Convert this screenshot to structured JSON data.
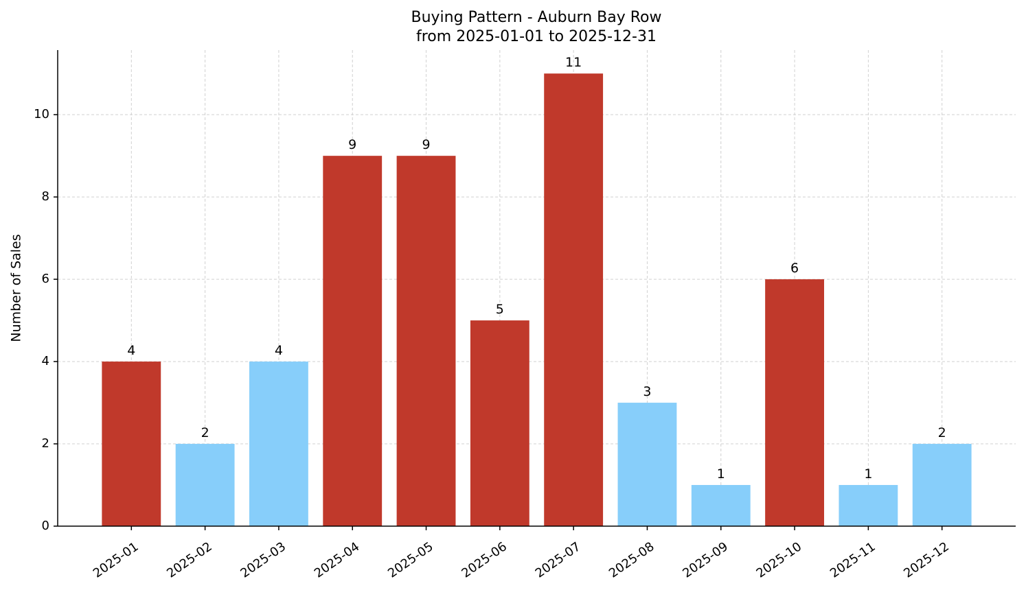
{
  "chart_data": {
    "type": "bar",
    "title": "Buying Pattern - Auburn Bay Row",
    "subtitle": "from 2025-01-01 to 2025-12-31",
    "y_label": "Number of Sales",
    "categories": [
      "2025-01",
      "2025-02",
      "2025-03",
      "2025-04",
      "2025-05",
      "2025-06",
      "2025-07",
      "2025-08",
      "2025-09",
      "2025-10",
      "2025-11",
      "2025-12"
    ],
    "values": [
      4,
      2,
      4,
      9,
      9,
      5,
      11,
      3,
      1,
      6,
      1,
      2
    ],
    "colors": [
      "#c0392b",
      "#87cefa",
      "#87cefa",
      "#c0392b",
      "#c0392b",
      "#c0392b",
      "#c0392b",
      "#87cefa",
      "#87cefa",
      "#c0392b",
      "#87cefa",
      "#87cefa"
    ],
    "ylim": [
      0,
      11.57
    ],
    "yticks": [
      0,
      2,
      4,
      6,
      8,
      10
    ],
    "grid": true
  }
}
